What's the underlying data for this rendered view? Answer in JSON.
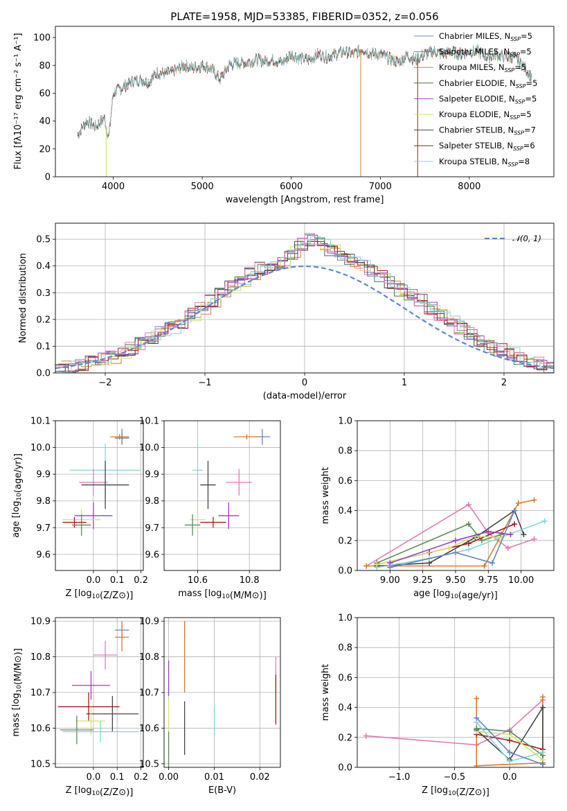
{
  "colors": {
    "Chabrier MILES": "#5f86c8",
    "Salpeter MILES": "#7f7f7f",
    "Kroupa MILES": "#d97a2b",
    "Chabrier ELODIE": "#3b7a3b",
    "Salpeter ELODIE": "#9b3cc0",
    "Kroupa ELODIE": "#d7e06a",
    "Chabrier STELIB": "#444444",
    "Salpeter STELIB": "#a31a1a",
    "Kroupa STELIB": "#86d6d6",
    "pink": "#e07ab6",
    "green": "#5a8a5a",
    "normal": "#5b87d0",
    "grid": "#b0b0b0"
  },
  "chart_data": [
    {
      "id": "spectrum",
      "type": "line",
      "title": "PLATE=1958, MJD=53385, FIBERID=0352, z=0.056",
      "xlabel": "wavelength [Angstrom, rest frame]",
      "ylabel": "Flux [fλ10⁻¹⁷ erg cm⁻² s⁻¹ A⁻¹]",
      "xlim": [
        3350,
        8950
      ],
      "ylim": [
        0,
        108
      ],
      "xticks": [
        4000,
        5000,
        6000,
        7000,
        8000
      ],
      "yticks": [
        0,
        20,
        40,
        60,
        80,
        100
      ],
      "grid": false,
      "legend": "top-right",
      "x": [
        3600,
        3700,
        3800,
        3900,
        3950,
        4000,
        4100,
        4200,
        4300,
        4400,
        4500,
        4600,
        4700,
        4800,
        4900,
        5000,
        5100,
        5200,
        5300,
        5400,
        5500,
        5600,
        5700,
        5800,
        5900,
        6000,
        6100,
        6200,
        6300,
        6400,
        6500,
        6600,
        6700,
        6800,
        6900,
        7000,
        7100,
        7200,
        7300,
        7400,
        7500,
        7600,
        7700,
        7800,
        7900,
        8000,
        8100,
        8200,
        8300,
        8400,
        8500,
        8600,
        8700
      ],
      "flux": [
        30,
        40,
        36,
        42,
        28,
        60,
        64,
        68,
        70,
        68,
        75,
        74,
        76,
        80,
        78,
        80,
        78,
        70,
        80,
        82,
        82,
        84,
        83,
        84,
        82,
        88,
        85,
        84,
        88,
        86,
        88,
        90,
        88,
        92,
        88,
        88,
        85,
        82,
        87,
        84,
        88,
        90,
        88,
        90,
        88,
        90,
        90,
        86,
        88,
        86,
        86,
        80,
        72
      ],
      "series_names": [
        "Chabrier MILES, N_SSP=5",
        "Salpeter MILES, N_SSP=5",
        "Kroupa MILES, N_SSP=5",
        "Chabrier ELODIE, N_SSP=5",
        "Salpeter ELODIE, N_SSP=5",
        "Kroupa ELODIE, N_SSP=5",
        "Chabrier STELIB, N_SSP=7",
        "Salpeter STELIB, N_SSP=6",
        "Kroupa STELIB, N_SSP=8"
      ],
      "legend_entries": [
        {
          "prefix": "Chabrier MILES, N",
          "sub": "SSP",
          "suffix": "=5",
          "key": "Chabrier MILES"
        },
        {
          "prefix": "Salpeter MILES, N",
          "sub": "SSP",
          "suffix": "=5",
          "key": "Salpeter MILES"
        },
        {
          "prefix": "Kroupa MILES, N",
          "sub": "SSP",
          "suffix": "=5",
          "key": "Kroupa MILES"
        },
        {
          "prefix": "Chabrier ELODIE, N",
          "sub": "SSP",
          "suffix": "=5",
          "key": "Chabrier ELODIE"
        },
        {
          "prefix": "Salpeter ELODIE, N",
          "sub": "SSP",
          "suffix": "=5",
          "key": "Salpeter ELODIE"
        },
        {
          "prefix": "Kroupa ELODIE, N",
          "sub": "SSP",
          "suffix": "=5",
          "key": "Kroupa ELODIE"
        },
        {
          "prefix": "Chabrier STELIB, N",
          "sub": "SSP",
          "suffix": "=7",
          "key": "Chabrier STELIB"
        },
        {
          "prefix": "Salpeter STELIB, N",
          "sub": "SSP",
          "suffix": "=6",
          "key": "Salpeter STELIB"
        },
        {
          "prefix": "Kroupa STELIB, N",
          "sub": "SSP",
          "suffix": "=8",
          "key": "Kroupa STELIB"
        }
      ]
    },
    {
      "id": "residuals",
      "type": "bar",
      "xlabel": "(data-model)/error",
      "ylabel": "Normed distribution",
      "xlim": [
        -2.5,
        2.5
      ],
      "ylim": [
        0,
        0.56
      ],
      "xticks": [
        -2,
        -1,
        0,
        1,
        2
      ],
      "yticks": [
        0.0,
        0.1,
        0.2,
        0.3,
        0.4,
        0.5
      ],
      "grid": true,
      "legend": "top-right",
      "legend_label": "𝒩(0, 1)",
      "bin_width": 0.1,
      "values": [
        0.02,
        0.025,
        0.03,
        0.04,
        0.05,
        0.06,
        0.075,
        0.09,
        0.11,
        0.13,
        0.15,
        0.17,
        0.19,
        0.22,
        0.24,
        0.27,
        0.3,
        0.32,
        0.34,
        0.37,
        0.39,
        0.4,
        0.41,
        0.45,
        0.48,
        0.5,
        0.48,
        0.46,
        0.44,
        0.42,
        0.4,
        0.38,
        0.36,
        0.34,
        0.31,
        0.29,
        0.27,
        0.24,
        0.22,
        0.19,
        0.17,
        0.15,
        0.12,
        0.1,
        0.085,
        0.07,
        0.055,
        0.045,
        0.035,
        0.025
      ]
    },
    {
      "id": "age-vs-Z",
      "type": "scatter",
      "xlabel": "Z [log10(Z/Z⊙)]",
      "ylabel": "age  [log10(age/yr)]",
      "xlim": [
        -0.16,
        0.21
      ],
      "ylim": [
        9.54,
        10.1
      ],
      "xticks": [
        0.0,
        0.1,
        0.2
      ],
      "yticks": [
        9.6,
        9.7,
        9.8,
        9.9,
        10.0,
        10.1
      ],
      "grid": true,
      "points": [
        {
          "s": "Chabrier MILES",
          "x": 0.12,
          "y": 10.04,
          "ex": 0.03,
          "ey": 0.03
        },
        {
          "s": "Kroupa MILES",
          "x": 0.11,
          "y": 10.04,
          "ex": 0.04,
          "ey": 0.01
        },
        {
          "s": "Salpeter MILES",
          "x": 0.12,
          "y": 10.035,
          "ex": 0.03,
          "ey": 0.02
        },
        {
          "s": "Kroupa STELIB",
          "x": 0.05,
          "y": 9.915,
          "ex": 0.15,
          "ey": 0.1
        },
        {
          "s": "pink",
          "x": 0.0,
          "y": 9.87,
          "ex": 0.06,
          "ey": 0.05
        },
        {
          "s": "Chabrier STELIB",
          "x": 0.05,
          "y": 9.86,
          "ex": 0.1,
          "ey": 0.09
        },
        {
          "s": "Salpeter ELODIE",
          "x": 0.0,
          "y": 9.745,
          "ex": 0.08,
          "ey": 0.05
        },
        {
          "s": "Kroupa ELODIE",
          "x": -0.05,
          "y": 9.73,
          "ex": 0.08,
          "ey": 0.04
        },
        {
          "s": "Salpeter STELIB",
          "x": -0.08,
          "y": 9.72,
          "ex": 0.05,
          "ey": 0.02
        },
        {
          "s": "green",
          "x": -0.05,
          "y": 9.71,
          "ex": 0.04,
          "ey": 0.04
        }
      ]
    },
    {
      "id": "age-vs-mass",
      "type": "scatter",
      "xlabel": "mass [log10(M/M⊙)]",
      "ylabel": "",
      "xlim": [
        10.47,
        10.92
      ],
      "ylim": [
        9.54,
        10.1
      ],
      "xticks": [
        10.6,
        10.8
      ],
      "yticks": [
        9.6,
        9.7,
        9.8,
        9.9,
        10.0,
        10.1
      ],
      "grid": true,
      "points": [
        {
          "s": "Chabrier MILES",
          "x": 10.85,
          "y": 10.04,
          "ex": 0.03,
          "ey": 0.03
        },
        {
          "s": "Kroupa MILES",
          "x": 10.79,
          "y": 10.04,
          "ex": 0.05,
          "ey": 0.01
        },
        {
          "s": "Kroupa STELIB",
          "x": 10.6,
          "y": 9.915,
          "ex": 0.02,
          "ey": 0.1
        },
        {
          "s": "pink",
          "x": 10.76,
          "y": 9.87,
          "ex": 0.05,
          "ey": 0.05
        },
        {
          "s": "Chabrier STELIB",
          "x": 10.64,
          "y": 9.86,
          "ex": 0.03,
          "ey": 0.09
        },
        {
          "s": "Salpeter ELODIE",
          "x": 10.72,
          "y": 9.745,
          "ex": 0.04,
          "ey": 0.05
        },
        {
          "s": "Kroupa ELODIE",
          "x": 10.6,
          "y": 9.73,
          "ex": 0.03,
          "ey": 0.04
        },
        {
          "s": "Salpeter STELIB",
          "x": 10.66,
          "y": 9.72,
          "ex": 0.05,
          "ey": 0.02
        },
        {
          "s": "green",
          "x": 10.58,
          "y": 9.71,
          "ex": 0.03,
          "ey": 0.04
        }
      ]
    },
    {
      "id": "weight-vs-age",
      "type": "line",
      "xlabel": "age  [log10(age/yr)]",
      "ylabel": "mass weight",
      "xlim": [
        8.75,
        10.25
      ],
      "ylim": [
        0,
        1.0
      ],
      "xticks": [
        9.0,
        9.25,
        9.5,
        9.75,
        10.0
      ],
      "yticks": [
        0.0,
        0.2,
        0.4,
        0.6,
        0.8,
        1.0
      ],
      "grid": true,
      "series": [
        {
          "s": "pink",
          "x": [
            8.82,
            9.6,
            9.75,
            9.9,
            10.1
          ],
          "y": [
            0.03,
            0.44,
            0.25,
            0.15,
            0.21
          ]
        },
        {
          "s": "Kroupa MILES",
          "x": [
            8.82,
            9.72,
            9.98,
            10.1
          ],
          "y": [
            0.03,
            0.03,
            0.45,
            0.47
          ]
        },
        {
          "s": "green",
          "x": [
            8.9,
            9.6,
            9.7,
            9.85
          ],
          "y": [
            0.05,
            0.31,
            0.2,
            0.24
          ]
        },
        {
          "s": "Salpeter STELIB",
          "x": [
            8.9,
            9.3,
            9.6,
            9.95
          ],
          "y": [
            0.04,
            0.12,
            0.18,
            0.31
          ]
        },
        {
          "s": "Chabrier STELIB",
          "x": [
            8.9,
            9.3,
            9.65,
            9.95,
            10.02
          ],
          "y": [
            0.03,
            0.05,
            0.22,
            0.4,
            0.24
          ]
        },
        {
          "s": "Kroupa STELIB",
          "x": [
            8.9,
            9.3,
            9.6,
            10.18
          ],
          "y": [
            0.02,
            0.08,
            0.14,
            0.33
          ]
        },
        {
          "s": "Kroupa ELODIE",
          "x": [
            8.9,
            9.45,
            9.65,
            9.85
          ],
          "y": [
            0.04,
            0.15,
            0.23,
            0.22
          ]
        },
        {
          "s": "Salpeter ELODIE",
          "x": [
            9.0,
            9.5,
            9.75,
            9.92
          ],
          "y": [
            0.05,
            0.2,
            0.26,
            0.24
          ]
        },
        {
          "s": "Chabrier MILES",
          "x": [
            9.0,
            9.5,
            9.78,
            9.95
          ],
          "y": [
            0.02,
            0.12,
            0.05,
            0.4
          ]
        }
      ]
    },
    {
      "id": "mass-vs-Z",
      "type": "scatter",
      "xlabel": "Z [log10(Z/Z⊙)]",
      "ylabel": "mass [log10(M/M⊙)]",
      "xlim": [
        -0.16,
        0.21
      ],
      "ylim": [
        10.49,
        10.91
      ],
      "xticks": [
        0.0,
        0.1,
        0.2
      ],
      "yticks": [
        10.5,
        10.6,
        10.7,
        10.8,
        10.9
      ],
      "grid": true,
      "points": [
        {
          "s": "Chabrier MILES",
          "x": 0.12,
          "y": 10.875,
          "ex": 0.03,
          "ey": 0.025
        },
        {
          "s": "Kroupa MILES",
          "x": 0.12,
          "y": 10.855,
          "ex": 0.03,
          "ey": 0.04
        },
        {
          "s": "pink",
          "x": 0.05,
          "y": 10.805,
          "ex": 0.05,
          "ey": 0.04
        },
        {
          "s": "Salpeter ELODIE",
          "x": -0.01,
          "y": 10.72,
          "ex": 0.08,
          "ey": 0.04
        },
        {
          "s": "Salpeter STELIB",
          "x": -0.02,
          "y": 10.66,
          "ex": 0.13,
          "ey": 0.04
        },
        {
          "s": "Chabrier STELIB",
          "x": 0.08,
          "y": 10.64,
          "ex": 0.11,
          "ey": 0.05
        },
        {
          "s": "Kroupa ELODIE",
          "x": -0.01,
          "y": 10.62,
          "ex": 0.06,
          "ey": 0.04
        },
        {
          "s": "green",
          "x": -0.07,
          "y": 10.595,
          "ex": 0.07,
          "ey": 0.04
        },
        {
          "s": "Kroupa STELIB",
          "x": 0.03,
          "y": 10.59,
          "ex": 0.16,
          "ey": 0.03
        }
      ]
    },
    {
      "id": "mass-vs-EBV",
      "type": "scatter",
      "xlabel": "E(B-V)",
      "ylabel": "",
      "xlim": [
        -0.001,
        0.0245
      ],
      "ylim": [
        10.49,
        10.91
      ],
      "xticks": [
        0.0,
        0.01,
        0.02
      ],
      "yticks": [
        10.5,
        10.6,
        10.7,
        10.8,
        10.9
      ],
      "grid": true,
      "points": [
        {
          "s": "Chabrier MILES",
          "x": 0.0035,
          "y": 10.875,
          "ex": 0,
          "ey": 0.025
        },
        {
          "s": "Kroupa MILES",
          "x": 0.0035,
          "y": 10.8,
          "ex": 0,
          "ey": 0.1
        },
        {
          "s": "pink",
          "x": 0.0235,
          "y": 10.75,
          "ex": 0,
          "ey": 0.05
        },
        {
          "s": "Salpeter ELODIE",
          "x": 0.0,
          "y": 10.74,
          "ex": 0,
          "ey": 0.05
        },
        {
          "s": "Salpeter STELIB",
          "x": 0.0235,
          "y": 10.68,
          "ex": 0,
          "ey": 0.07
        },
        {
          "s": "Chabrier STELIB",
          "x": 0.0035,
          "y": 10.6,
          "ex": 0,
          "ey": 0.075
        },
        {
          "s": "Kroupa ELODIE",
          "x": 0.0,
          "y": 10.6,
          "ex": 0,
          "ey": 0.08
        },
        {
          "s": "green",
          "x": 0.0,
          "y": 10.54,
          "ex": 0,
          "ey": 0.05
        },
        {
          "s": "Kroupa STELIB",
          "x": 0.01,
          "y": 10.62,
          "ex": 0,
          "ey": 0.04
        }
      ]
    },
    {
      "id": "weight-vs-Z",
      "type": "line",
      "xlabel": "Z [log10(Z/Z⊙)]",
      "ylabel": "mass weight",
      "xlim": [
        -1.38,
        0.4
      ],
      "ylim": [
        0,
        1.0
      ],
      "xticks": [
        -1.0,
        -0.5,
        0.0
      ],
      "yticks": [
        0.0,
        0.2,
        0.4,
        0.6,
        0.8,
        1.0
      ],
      "grid": true,
      "series": [
        {
          "s": "pink",
          "x": [
            -1.3,
            -0.3,
            0.0,
            0.3
          ],
          "y": [
            0.21,
            0.15,
            0.25,
            0.45
          ]
        },
        {
          "s": "Kroupa MILES",
          "x": [
            -0.3,
            -0.3,
            0.3,
            0.3
          ],
          "y": [
            0.46,
            0.01,
            0.03,
            0.47
          ]
        },
        {
          "s": "Chabrier STELIB",
          "x": [
            -0.3,
            0.0,
            0.3,
            0.3
          ],
          "y": [
            0.25,
            0.05,
            0.4,
            0.02
          ]
        },
        {
          "s": "Salpeter STELIB",
          "x": [
            -0.3,
            0.0,
            0.3
          ],
          "y": [
            0.22,
            0.18,
            0.12
          ]
        },
        {
          "s": "Kroupa ELODIE",
          "x": [
            -0.3,
            0.0,
            0.3
          ],
          "y": [
            0.24,
            0.22,
            0.05
          ]
        },
        {
          "s": "green",
          "x": [
            -0.3,
            0.0,
            0.3
          ],
          "y": [
            0.26,
            0.24,
            0.08
          ]
        },
        {
          "s": "Kroupa STELIB",
          "x": [
            -0.3,
            0.0,
            0.3
          ],
          "y": [
            0.3,
            0.04,
            0.1
          ]
        },
        {
          "s": "Chabrier MILES",
          "x": [
            -0.3,
            0.0,
            0.3
          ],
          "y": [
            0.33,
            0.1,
            0.02
          ]
        }
      ]
    }
  ]
}
